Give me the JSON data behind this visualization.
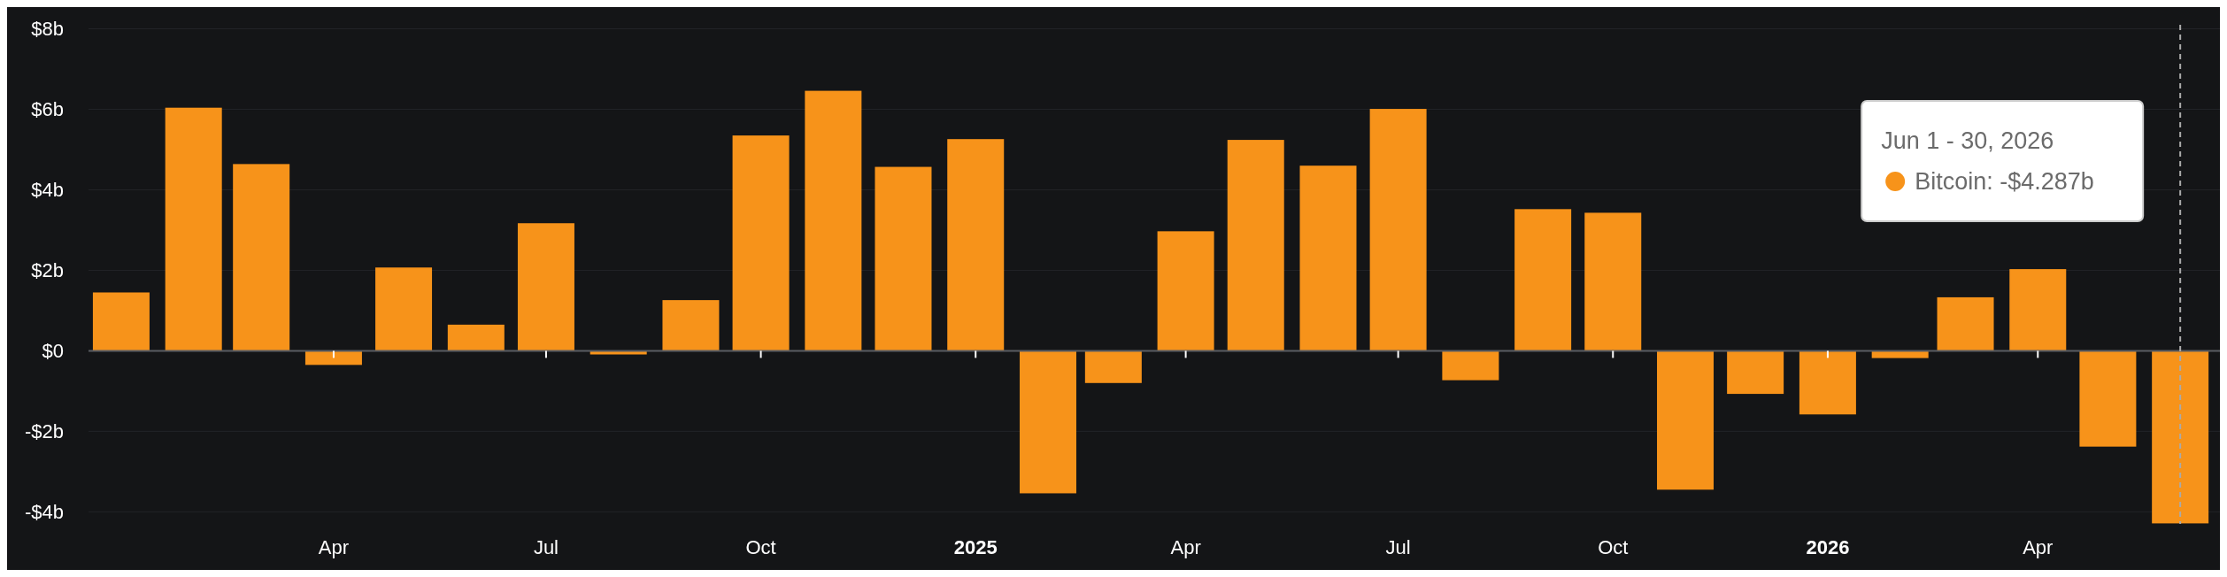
{
  "chart_data": {
    "type": "bar",
    "x": [
      "2024-01-01",
      "2024-02-01",
      "2024-03-01",
      "2024-04-01",
      "2024-05-01",
      "2024-06-01",
      "2024-07-01",
      "2024-08-01",
      "2024-09-01",
      "2024-10-01",
      "2024-11-01",
      "2024-12-01",
      "2025-01-01",
      "2025-02-01",
      "2025-03-01",
      "2025-04-01",
      "2025-05-01",
      "2025-06-01",
      "2025-07-01",
      "2025-08-01",
      "2025-09-01",
      "2025-10-01",
      "2025-11-01",
      "2025-12-01",
      "2026-01-01",
      "2026-02-01",
      "2026-03-01",
      "2026-04-01",
      "2026-05-01",
      "2026-06-01"
    ],
    "series": [
      {
        "color": "#f7931a",
        "values": [
          1.45,
          6.04,
          4.64,
          -0.35,
          2.07,
          0.65,
          3.17,
          -0.09,
          1.26,
          5.35,
          6.46,
          4.57,
          5.26,
          -3.54,
          -0.8,
          2.97,
          5.24,
          4.6,
          6.01,
          -0.73,
          3.52,
          3.43,
          -3.45,
          -1.07,
          -1.58,
          -0.18,
          1.33,
          2.03,
          -2.38,
          -4.287
        ]
      }
    ],
    "xlim": [
      "2023-12-18",
      "2026-06-18"
    ],
    "xticks": [
      {
        "value": "2024-04-01",
        "label": "Apr"
      },
      {
        "value": "2024-07-01",
        "label": "Jul"
      },
      {
        "value": "2024-10-01",
        "label": "Oct"
      },
      {
        "value": "2025-01-01",
        "label": "2025"
      },
      {
        "value": "2025-04-01",
        "label": "Apr"
      },
      {
        "value": "2025-07-01",
        "label": "Jul"
      },
      {
        "value": "2025-10-01",
        "label": "Oct"
      },
      {
        "value": "2026-01-01",
        "label": "2026"
      },
      {
        "value": "2026-04-01",
        "label": "Apr"
      }
    ],
    "ylim": [
      -4.3,
      8.1
    ],
    "yticks": [
      {
        "value": -4,
        "label": "-$4b"
      },
      {
        "value": -2,
        "label": "-$2b"
      },
      {
        "value": 0,
        "label": "$0"
      },
      {
        "value": 2,
        "label": "$2b"
      },
      {
        "value": 4,
        "label": "$4b"
      },
      {
        "value": 6,
        "label": "$6b"
      },
      {
        "value": 8,
        "label": "$8b"
      }
    ],
    "grid": "y",
    "ref_lines": [
      {
        "axis": "x",
        "value": "2026-06-01",
        "line_style": "dashed",
        "color": "#aaaaaa"
      }
    ],
    "annotations": [
      "Jun 1 - 30, 2026",
      "Bitcoin: -$4.287b"
    ]
  }
}
